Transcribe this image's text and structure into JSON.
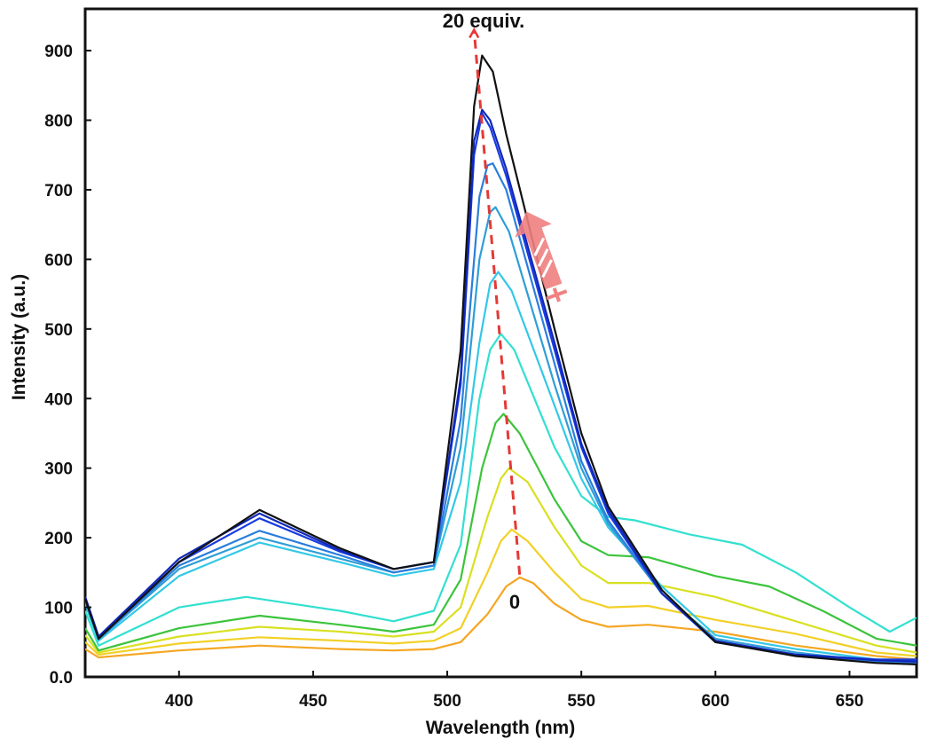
{
  "chart_data": {
    "type": "line",
    "title": "",
    "xlabel": "Wavelength (nm)",
    "ylabel": "Intensity (a.u.)",
    "xlim": [
      365,
      675
    ],
    "ylim": [
      0,
      960
    ],
    "x_ticks": [
      400,
      450,
      500,
      550,
      600,
      650
    ],
    "y_ticks": [
      0,
      100,
      200,
      300,
      400,
      500,
      600,
      700,
      800,
      900
    ],
    "y_tick_labels": [
      "0.0",
      "100",
      "200",
      "300",
      "400",
      "500",
      "600",
      "700",
      "800",
      "900"
    ],
    "grid": false,
    "legend": "none",
    "annotations": {
      "top": "20 equiv.",
      "bottom": "0"
    },
    "trend_arrow_points": [
      [
        527,
        147
      ],
      [
        510,
        930
      ]
    ],
    "series": [
      {
        "color": "#F5A623",
        "points": [
          [
            365,
            40
          ],
          [
            370,
            28
          ],
          [
            400,
            38
          ],
          [
            430,
            45
          ],
          [
            460,
            40
          ],
          [
            480,
            38
          ],
          [
            495,
            40
          ],
          [
            505,
            50
          ],
          [
            515,
            90
          ],
          [
            522,
            130
          ],
          [
            527,
            143
          ],
          [
            532,
            135
          ],
          [
            540,
            105
          ],
          [
            550,
            82
          ],
          [
            560,
            72
          ],
          [
            575,
            75
          ],
          [
            600,
            65
          ],
          [
            630,
            45
          ],
          [
            660,
            30
          ],
          [
            675,
            25
          ]
        ]
      },
      {
        "color": "#F2D027",
        "points": [
          [
            365,
            50
          ],
          [
            370,
            32
          ],
          [
            400,
            48
          ],
          [
            430,
            57
          ],
          [
            460,
            52
          ],
          [
            480,
            48
          ],
          [
            495,
            52
          ],
          [
            505,
            70
          ],
          [
            515,
            150
          ],
          [
            520,
            195
          ],
          [
            524,
            212
          ],
          [
            530,
            195
          ],
          [
            540,
            150
          ],
          [
            550,
            112
          ],
          [
            560,
            100
          ],
          [
            575,
            102
          ],
          [
            600,
            82
          ],
          [
            630,
            62
          ],
          [
            660,
            35
          ],
          [
            675,
            30
          ]
        ]
      },
      {
        "color": "#D9E021",
        "points": [
          [
            365,
            60
          ],
          [
            370,
            35
          ],
          [
            400,
            58
          ],
          [
            430,
            72
          ],
          [
            460,
            65
          ],
          [
            480,
            58
          ],
          [
            495,
            65
          ],
          [
            505,
            100
          ],
          [
            515,
            230
          ],
          [
            520,
            285
          ],
          [
            523,
            300
          ],
          [
            530,
            280
          ],
          [
            540,
            215
          ],
          [
            550,
            160
          ],
          [
            560,
            135
          ],
          [
            575,
            135
          ],
          [
            600,
            115
          ],
          [
            630,
            80
          ],
          [
            660,
            45
          ],
          [
            675,
            35
          ]
        ]
      },
      {
        "color": "#3CC43C",
        "points": [
          [
            365,
            70
          ],
          [
            370,
            38
          ],
          [
            400,
            70
          ],
          [
            430,
            88
          ],
          [
            460,
            75
          ],
          [
            480,
            65
          ],
          [
            495,
            75
          ],
          [
            505,
            140
          ],
          [
            513,
            300
          ],
          [
            518,
            365
          ],
          [
            521,
            378
          ],
          [
            527,
            350
          ],
          [
            540,
            255
          ],
          [
            550,
            195
          ],
          [
            560,
            175
          ],
          [
            575,
            172
          ],
          [
            600,
            145
          ],
          [
            620,
            130
          ],
          [
            640,
            95
          ],
          [
            660,
            55
          ],
          [
            675,
            45
          ]
        ]
      },
      {
        "color": "#33E0D0",
        "points": [
          [
            365,
            95
          ],
          [
            370,
            45
          ],
          [
            400,
            100
          ],
          [
            425,
            115
          ],
          [
            460,
            95
          ],
          [
            480,
            80
          ],
          [
            495,
            95
          ],
          [
            505,
            190
          ],
          [
            512,
            400
          ],
          [
            516,
            470
          ],
          [
            520,
            493
          ],
          [
            525,
            470
          ],
          [
            540,
            330
          ],
          [
            550,
            260
          ],
          [
            560,
            230
          ],
          [
            570,
            225
          ],
          [
            590,
            205
          ],
          [
            610,
            190
          ],
          [
            630,
            150
          ],
          [
            650,
            100
          ],
          [
            665,
            65
          ],
          [
            675,
            85
          ]
        ]
      },
      {
        "color": "#33C8E6",
        "points": [
          [
            365,
            105
          ],
          [
            370,
            52
          ],
          [
            400,
            145
          ],
          [
            430,
            193
          ],
          [
            460,
            165
          ],
          [
            480,
            145
          ],
          [
            495,
            155
          ],
          [
            505,
            280
          ],
          [
            512,
            480
          ],
          [
            516,
            565
          ],
          [
            519,
            582
          ],
          [
            524,
            555
          ],
          [
            540,
            390
          ],
          [
            550,
            285
          ],
          [
            560,
            215
          ],
          [
            580,
            130
          ],
          [
            600,
            60
          ],
          [
            630,
            40
          ],
          [
            660,
            25
          ],
          [
            675,
            22
          ]
        ]
      },
      {
        "color": "#2F9ED6",
        "points": [
          [
            365,
            110
          ],
          [
            370,
            54
          ],
          [
            400,
            155
          ],
          [
            430,
            200
          ],
          [
            460,
            170
          ],
          [
            480,
            150
          ],
          [
            495,
            160
          ],
          [
            505,
            330
          ],
          [
            512,
            600
          ],
          [
            516,
            668
          ],
          [
            518,
            675
          ],
          [
            523,
            640
          ],
          [
            540,
            420
          ],
          [
            550,
            300
          ],
          [
            560,
            220
          ],
          [
            580,
            120
          ],
          [
            600,
            55
          ],
          [
            630,
            35
          ],
          [
            660,
            22
          ],
          [
            675,
            20
          ]
        ]
      },
      {
        "color": "#2A7EDC",
        "points": [
          [
            365,
            112
          ],
          [
            370,
            55
          ],
          [
            400,
            160
          ],
          [
            430,
            210
          ],
          [
            460,
            175
          ],
          [
            480,
            150
          ],
          [
            495,
            160
          ],
          [
            505,
            370
          ],
          [
            512,
            690
          ],
          [
            515,
            735
          ],
          [
            517,
            738
          ],
          [
            522,
            700
          ],
          [
            540,
            450
          ],
          [
            550,
            310
          ],
          [
            560,
            225
          ],
          [
            580,
            120
          ],
          [
            600,
            50
          ],
          [
            630,
            30
          ],
          [
            660,
            22
          ],
          [
            675,
            20
          ]
        ]
      },
      {
        "color": "#1A3BE0",
        "points": [
          [
            365,
            115
          ],
          [
            370,
            58
          ],
          [
            400,
            165
          ],
          [
            430,
            228
          ],
          [
            460,
            180
          ],
          [
            480,
            155
          ],
          [
            495,
            165
          ],
          [
            505,
            420
          ],
          [
            510,
            750
          ],
          [
            513,
            810
          ],
          [
            516,
            790
          ],
          [
            522,
            720
          ],
          [
            540,
            470
          ],
          [
            550,
            330
          ],
          [
            560,
            235
          ],
          [
            580,
            120
          ],
          [
            600,
            50
          ],
          [
            630,
            32
          ],
          [
            660,
            25
          ],
          [
            675,
            25
          ]
        ]
      },
      {
        "color": "#1028B8",
        "points": [
          [
            365,
            115
          ],
          [
            370,
            58
          ],
          [
            400,
            170
          ],
          [
            430,
            235
          ],
          [
            460,
            182
          ],
          [
            480,
            155
          ],
          [
            495,
            165
          ],
          [
            505,
            430
          ],
          [
            510,
            770
          ],
          [
            513,
            815
          ],
          [
            516,
            800
          ],
          [
            522,
            730
          ],
          [
            540,
            480
          ],
          [
            550,
            335
          ],
          [
            560,
            240
          ],
          [
            580,
            120
          ],
          [
            600,
            52
          ],
          [
            630,
            32
          ],
          [
            660,
            24
          ],
          [
            675,
            22
          ]
        ]
      },
      {
        "color": "#111111",
        "points": [
          [
            365,
            112
          ],
          [
            370,
            55
          ],
          [
            400,
            165
          ],
          [
            430,
            240
          ],
          [
            460,
            185
          ],
          [
            480,
            155
          ],
          [
            495,
            165
          ],
          [
            505,
            470
          ],
          [
            510,
            820
          ],
          [
            513,
            893
          ],
          [
            517,
            870
          ],
          [
            522,
            780
          ],
          [
            540,
            500
          ],
          [
            550,
            350
          ],
          [
            560,
            245
          ],
          [
            580,
            125
          ],
          [
            600,
            50
          ],
          [
            630,
            30
          ],
          [
            660,
            20
          ],
          [
            675,
            18
          ]
        ]
      }
    ]
  }
}
